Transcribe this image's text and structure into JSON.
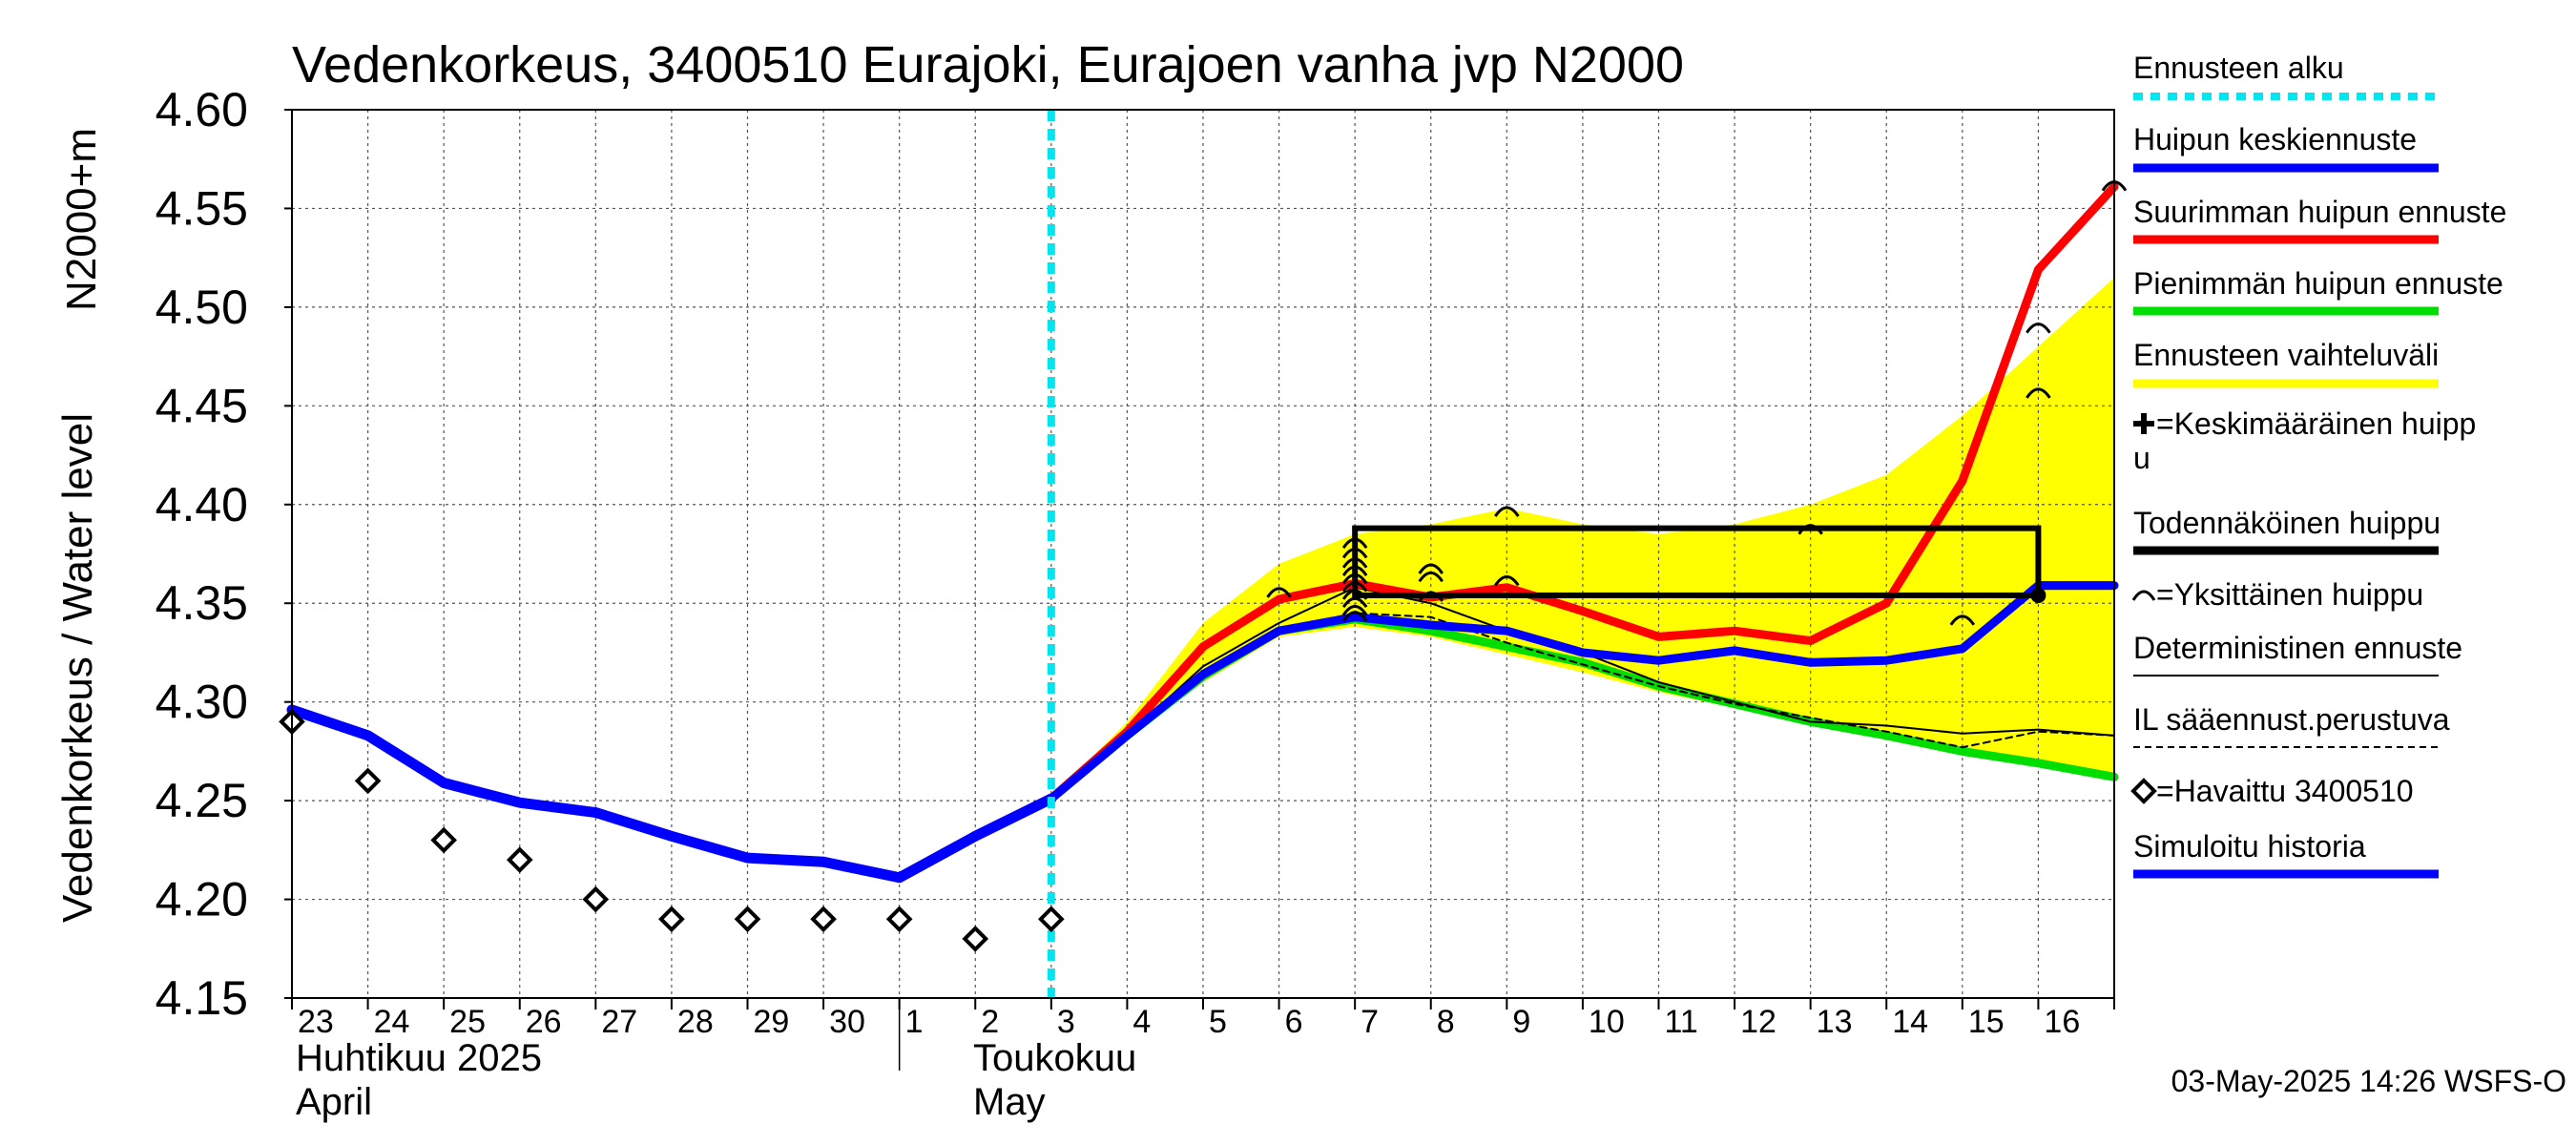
{
  "chart_data": {
    "type": "line",
    "title": "Vedenkorkeus, 3400510 Eurajoki, Eurajoen vanha jvp N2000",
    "ylabel_top": "N2000+m",
    "ylabel_bottom": "Vedenkorkeus / Water level",
    "ylim": [
      4.15,
      4.6
    ],
    "yticks": [
      "4.60",
      "4.55",
      "4.50",
      "4.45",
      "4.40",
      "4.35",
      "4.30",
      "4.25",
      "4.20",
      "4.15"
    ],
    "ytick_values": [
      4.6,
      4.55,
      4.5,
      4.45,
      4.4,
      4.35,
      4.3,
      4.25,
      4.2,
      4.15
    ],
    "xlim": [
      0,
      24
    ],
    "xtick_labels": [
      "23",
      "24",
      "25",
      "26",
      "27",
      "28",
      "29",
      "30",
      "1",
      "2",
      "3",
      "4",
      "5",
      "6",
      "7",
      "8",
      "9",
      "10",
      "11",
      "12",
      "13",
      "14",
      "15",
      "16"
    ],
    "month_labels": [
      {
        "line1": "Huhtikuu  2025",
        "line2": "April",
        "day_index": 0
      },
      {
        "line1": "Toukokuu",
        "line2": "May",
        "day_index": 9
      }
    ],
    "month_divider_day": 8,
    "forecast_start_day": 10,
    "grid": true,
    "legend_position": "right",
    "series": [
      {
        "name": "Simuloitu historia",
        "color": "#0000ff",
        "x": [
          0,
          1,
          2,
          3,
          4,
          5,
          6,
          7,
          8,
          9,
          10
        ],
        "values": [
          4.296,
          4.283,
          4.259,
          4.249,
          4.244,
          4.232,
          4.221,
          4.219,
          4.211,
          4.232,
          4.251
        ]
      },
      {
        "name": "Ennusteen vaihteluväli",
        "color": "#ffff00",
        "x": [
          10,
          11,
          12,
          13,
          14,
          15,
          16,
          17,
          18,
          19,
          20,
          21,
          22,
          23,
          24
        ],
        "upper": [
          4.251,
          4.29,
          4.34,
          4.37,
          4.385,
          4.39,
          4.398,
          4.39,
          4.385,
          4.39,
          4.4,
          4.415,
          4.445,
          4.48,
          4.515
        ],
        "lower": [
          4.251,
          4.283,
          4.31,
          4.333,
          4.338,
          4.333,
          4.324,
          4.315,
          4.305,
          4.297,
          4.29,
          4.283,
          4.275,
          4.268,
          4.262
        ]
      },
      {
        "name": "Suurimman huipun ennuste",
        "color": "#ff0000",
        "x": [
          10,
          11,
          12,
          13,
          14,
          15,
          16,
          17,
          18,
          19,
          20,
          21,
          22,
          23,
          24
        ],
        "values": [
          4.251,
          4.285,
          4.328,
          4.352,
          4.36,
          4.353,
          4.358,
          4.346,
          4.333,
          4.336,
          4.331,
          4.35,
          4.412,
          4.519,
          4.561
        ]
      },
      {
        "name": "Pienimmän huipun ennuste",
        "color": "#00dd00",
        "x": [
          10,
          11,
          12,
          13,
          14,
          15,
          16,
          17,
          18,
          19,
          20,
          21,
          22,
          23,
          24
        ],
        "values": [
          4.251,
          4.283,
          4.313,
          4.336,
          4.342,
          4.336,
          4.328,
          4.32,
          4.308,
          4.299,
          4.29,
          4.283,
          4.275,
          4.269,
          4.262
        ]
      },
      {
        "name": "Huipun keskiennuste",
        "color": "#0000ff",
        "x": [
          10,
          11,
          12,
          13,
          14,
          15,
          16,
          17,
          18,
          19,
          20,
          21,
          22,
          23,
          24
        ],
        "values": [
          4.251,
          4.283,
          4.314,
          4.336,
          4.343,
          4.339,
          4.336,
          4.325,
          4.321,
          4.326,
          4.32,
          4.321,
          4.327,
          4.359,
          4.359
        ]
      },
      {
        "name": "Deterministinen ennuste",
        "color": "#000000",
        "x": [
          10,
          11,
          12,
          13,
          14,
          15,
          16,
          17,
          18,
          19,
          20,
          21,
          22,
          23,
          24
        ],
        "values": [
          4.251,
          4.283,
          4.318,
          4.34,
          4.358,
          4.35,
          4.336,
          4.325,
          4.31,
          4.3,
          4.29,
          4.288,
          4.284,
          4.286,
          4.283
        ]
      },
      {
        "name": "IL sääennust.perustuva",
        "color": "#000000",
        "x": [
          10,
          11,
          12,
          13,
          14,
          15,
          16,
          17,
          18,
          19,
          20,
          21,
          22,
          23,
          24
        ],
        "values": [
          4.251,
          4.283,
          4.313,
          4.337,
          4.345,
          4.343,
          4.33,
          4.319,
          4.308,
          4.299,
          4.292,
          4.285,
          4.277,
          4.285,
          4.283
        ]
      }
    ],
    "observed": {
      "name": "=Havaittu 3400510",
      "x": [
        0,
        1,
        2,
        3,
        4,
        5,
        6,
        7,
        8,
        9,
        10
      ],
      "values": [
        4.29,
        4.26,
        4.23,
        4.22,
        4.2,
        4.19,
        4.19,
        4.19,
        4.19,
        4.18,
        4.19
      ]
    },
    "probable_peak_box": {
      "x_start": 14,
      "x_end": 23,
      "y_low": 4.354,
      "y_high": 4.388
    },
    "single_peaks": [
      {
        "x": 13,
        "y": 4.355
      },
      {
        "x": 14,
        "y": 4.38
      },
      {
        "x": 14,
        "y": 4.375
      },
      {
        "x": 14,
        "y": 4.37
      },
      {
        "x": 14,
        "y": 4.366
      },
      {
        "x": 14,
        "y": 4.362
      },
      {
        "x": 14,
        "y": 4.358
      },
      {
        "x": 14,
        "y": 4.354
      },
      {
        "x": 14,
        "y": 4.35
      },
      {
        "x": 14,
        "y": 4.346
      },
      {
        "x": 14,
        "y": 4.343
      },
      {
        "x": 15,
        "y": 4.367
      },
      {
        "x": 15,
        "y": 4.363
      },
      {
        "x": 15,
        "y": 4.353
      },
      {
        "x": 16,
        "y": 4.396
      },
      {
        "x": 16,
        "y": 4.361
      },
      {
        "x": 20,
        "y": 4.387
      },
      {
        "x": 22,
        "y": 4.341
      },
      {
        "x": 23,
        "y": 4.489
      },
      {
        "x": 23,
        "y": 4.456
      },
      {
        "x": 24,
        "y": 4.561
      }
    ]
  },
  "legend": [
    {
      "label": "Ennusteen alku",
      "color": "#00e5ee",
      "style": "dotted"
    },
    {
      "label": "Huipun keskiennuste",
      "color": "#0000ff",
      "style": "solid"
    },
    {
      "label": "Suurimman huipun ennuste",
      "color": "#ff0000",
      "style": "solid"
    },
    {
      "label": "Pienimmän huipun ennuste",
      "color": "#00dd00",
      "style": "solid"
    },
    {
      "label": "Ennusteen vaihteluväli",
      "color": "#ffff00",
      "style": "solid"
    },
    {
      "label_line1": "=Keskimääräinen huipp",
      "label_line2": "u",
      "marker": "plus"
    },
    {
      "label": "Todennäköinen huippu",
      "color": "#000000",
      "style": "solid"
    },
    {
      "label": "=Yksittäinen huippu",
      "marker": "arc"
    },
    {
      "label": "Deterministinen ennuste",
      "color": "#000000",
      "style": "thin"
    },
    {
      "label": "IL sääennust.perustuva",
      "color": "#000000",
      "style": "dashed"
    },
    {
      "label": "=Havaittu 3400510",
      "marker": "diamond"
    },
    {
      "label": "Simuloitu historia",
      "color": "#0000ff",
      "style": "solid"
    }
  ],
  "timestamp": "03-May-2025 14:26 WSFS-O"
}
